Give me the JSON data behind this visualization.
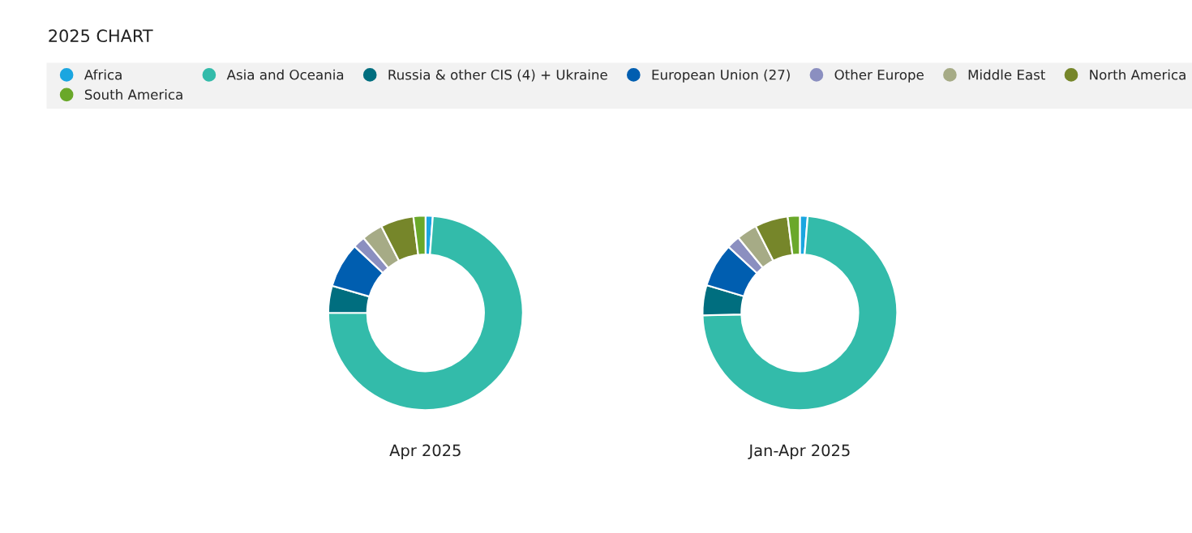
{
  "chart_data": {
    "type": "donut",
    "annotations": [
      "2025 CHART"
    ],
    "legend": "top",
    "categories": [
      "Africa",
      "Asia and Oceania",
      "Russia & other CIS (4) + Ukraine",
      "European Union (27)",
      "Other Europe",
      "Middle East",
      "North America",
      "South America"
    ],
    "colors": [
      "#1ba6e0",
      "#33bbaa",
      "#006e7f",
      "#005eb0",
      "#8b8fc0",
      "#a6ab86",
      "#76862a",
      "#6aa82a"
    ],
    "series": [
      {
        "name": "Apr 2025",
        "values": [
          1.2,
          73.8,
          4.5,
          7.5,
          2.0,
          3.5,
          5.5,
          2.0
        ]
      },
      {
        "name": "Jan-Apr 2025",
        "values": [
          1.3,
          73.3,
          5.0,
          7.3,
          2.2,
          3.4,
          5.5,
          2.0
        ]
      }
    ]
  }
}
